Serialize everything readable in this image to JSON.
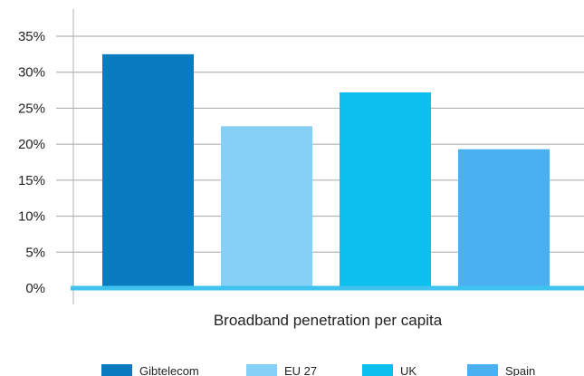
{
  "chart_data": {
    "type": "bar",
    "xlabel": "Broadband penetration per capita",
    "ylabel": "",
    "ylim": [
      0,
      35
    ],
    "yticks": [
      0,
      5,
      10,
      15,
      20,
      25,
      30,
      35
    ],
    "ytick_labels": [
      "0%",
      "5%",
      "10%",
      "15%",
      "20%",
      "25%",
      "30%",
      "35%"
    ],
    "grid": true,
    "legend_position": "bottom",
    "series": [
      {
        "name": "Gibtelecom",
        "value": 32.5,
        "color": "#0a7bbf"
      },
      {
        "name": "EU 27",
        "value": 22.5,
        "color": "#87d0f5"
      },
      {
        "name": "UK",
        "value": 27.2,
        "color": "#0bbfef"
      },
      {
        "name": "Spain",
        "value": 19.3,
        "color": "#4ab0f0"
      }
    ],
    "baseline_color": "#3fc3ee"
  }
}
